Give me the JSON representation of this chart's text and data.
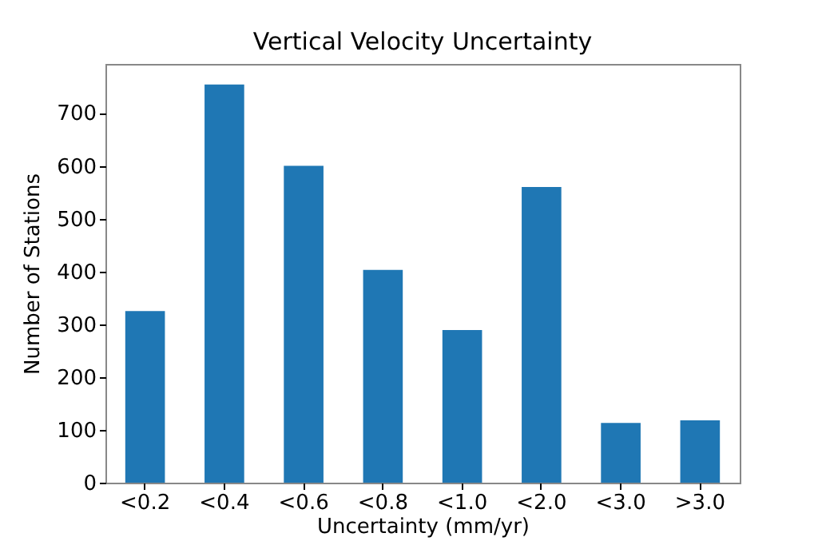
{
  "chart_data": {
    "type": "bar",
    "title": "Vertical Velocity Uncertainty",
    "xlabel": "Uncertainty (mm/yr)",
    "ylabel": "Number of Stations",
    "categories": [
      "<0.2",
      "<0.4",
      "<0.6",
      "<0.8",
      "<1.0",
      "<2.0",
      "<3.0",
      ">3.0"
    ],
    "values": [
      325,
      754,
      600,
      403,
      289,
      560,
      113,
      118
    ],
    "color": "#1f77b4",
    "ylim": [
      0,
      793
    ],
    "yticks": [
      0,
      100,
      200,
      300,
      400,
      500,
      600,
      700
    ],
    "grid": false
  }
}
